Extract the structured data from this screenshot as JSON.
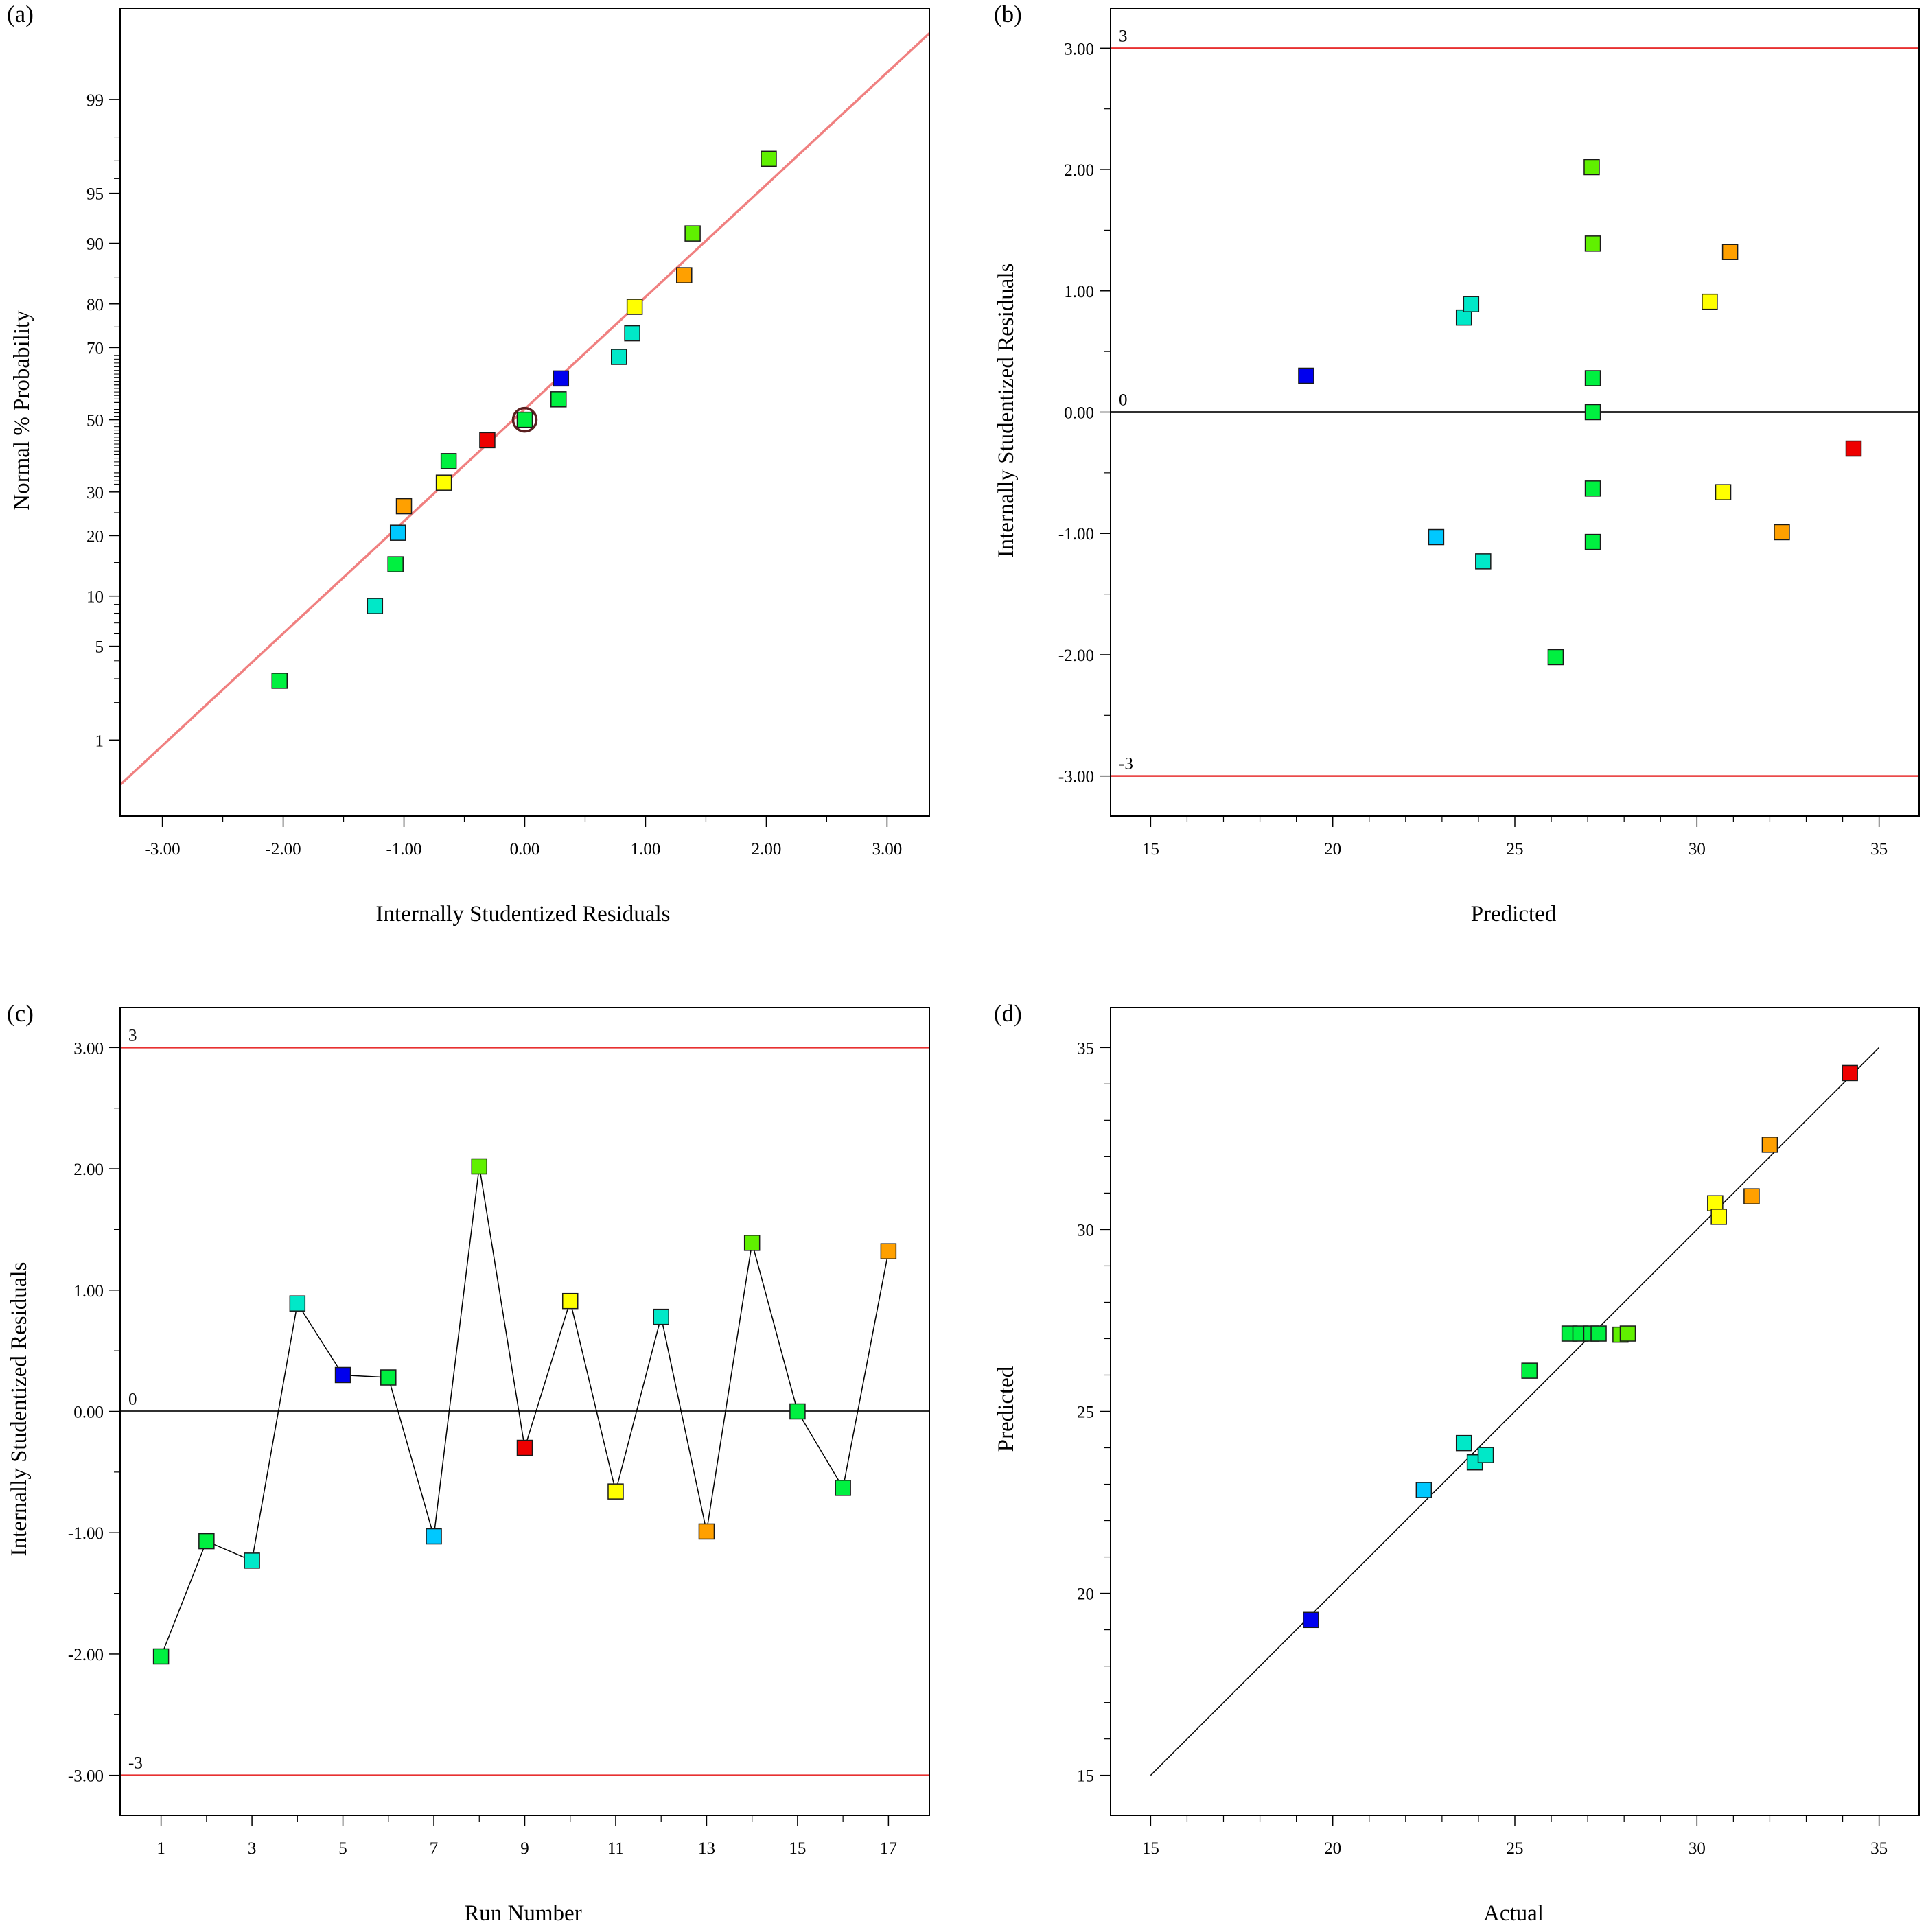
{
  "panels": [
    {
      "id": "a",
      "label": "(a)",
      "xlabel": "Internally Studentized Residuals",
      "ylabel": "Normal % Probability",
      "xticks": [
        "-3.00",
        "-2.00",
        "-1.00",
        "0.00",
        "1.00",
        "2.00",
        "3.00"
      ],
      "yticks": [
        "1",
        "5",
        "10",
        "20",
        "30",
        "50",
        "70",
        "80",
        "90",
        "95",
        "99"
      ]
    },
    {
      "id": "b",
      "label": "(b)",
      "xlabel": "Predicted",
      "ylabel": "Internally Studentized Residuals",
      "xticks": [
        "15",
        "20",
        "25",
        "30",
        "35"
      ],
      "yticks": [
        "-3.00",
        "-2.00",
        "-1.00",
        "0.00",
        "1.00",
        "2.00",
        "3.00"
      ],
      "ref_labels": [
        "3",
        "0",
        "-3"
      ]
    },
    {
      "id": "c",
      "label": "(c)",
      "xlabel": "Run Number",
      "ylabel": "Internally Studentized Residuals",
      "xticks": [
        "1",
        "3",
        "5",
        "7",
        "9",
        "11",
        "13",
        "15",
        "17"
      ],
      "yticks": [
        "-3.00",
        "-2.00",
        "-1.00",
        "0.00",
        "1.00",
        "2.00",
        "3.00"
      ],
      "ref_labels": [
        "3",
        "0",
        "-3"
      ]
    },
    {
      "id": "d",
      "label": "(d)",
      "xlabel": "Actual",
      "ylabel": "Predicted",
      "xticks": [
        "15",
        "20",
        "25",
        "30",
        "35"
      ],
      "yticks": [
        "15",
        "20",
        "25",
        "30",
        "35"
      ]
    }
  ],
  "colors": {
    "blue": "#0000ee",
    "sky": "#00c8ff",
    "cyan": "#00e8c8",
    "green": "#00f040",
    "lime": "#60f000",
    "yellow": "#ffff00",
    "orange": "#ffa000",
    "red": "#ee0000",
    "fit_line": "#f08080",
    "limit_line": "#e83030",
    "zero_line": "#303030"
  },
  "chart_data": [
    {
      "panel": "a",
      "type": "scatter",
      "title": "",
      "xlabel": "Internally Studentized Residuals",
      "ylabel": "Normal % Probability",
      "xlim": [
        -3.35,
        3.35
      ],
      "y_scale": "normal probability",
      "ylim_percent": [
        0.2,
        99.86
      ],
      "reference_line": {
        "x": [
          -3.35,
          3.35
        ],
        "y_percent": [
          0.4,
          99.75
        ]
      },
      "circled_point": {
        "x": 0.0,
        "y": 50.0
      },
      "points": [
        {
          "x": -2.03,
          "y": 2.9,
          "color": "green"
        },
        {
          "x": -1.24,
          "y": 8.8,
          "color": "cyan"
        },
        {
          "x": -1.07,
          "y": 14.7,
          "color": "green"
        },
        {
          "x": -1.05,
          "y": 20.6,
          "color": "sky"
        },
        {
          "x": -1.0,
          "y": 26.5,
          "color": "orange"
        },
        {
          "x": -0.67,
          "y": 32.4,
          "color": "yellow"
        },
        {
          "x": -0.63,
          "y": 38.2,
          "color": "green"
        },
        {
          "x": -0.31,
          "y": 44.1,
          "color": "red"
        },
        {
          "x": 0.0,
          "y": 50.0,
          "color": "green"
        },
        {
          "x": 0.28,
          "y": 55.9,
          "color": "green"
        },
        {
          "x": 0.3,
          "y": 61.8,
          "color": "blue"
        },
        {
          "x": 0.78,
          "y": 67.6,
          "color": "cyan"
        },
        {
          "x": 0.89,
          "y": 73.5,
          "color": "cyan"
        },
        {
          "x": 0.91,
          "y": 79.4,
          "color": "yellow"
        },
        {
          "x": 1.32,
          "y": 85.3,
          "color": "orange"
        },
        {
          "x": 1.39,
          "y": 91.2,
          "color": "lime"
        },
        {
          "x": 2.02,
          "y": 97.1,
          "color": "lime"
        }
      ]
    },
    {
      "panel": "b",
      "type": "scatter",
      "title": "",
      "xlabel": "Predicted",
      "ylabel": "Internally Studentized Residuals",
      "xlim": [
        13.9,
        36.1
      ],
      "ylim": [
        -3.33,
        3.33
      ],
      "reference_lines": [
        3,
        0,
        -3
      ],
      "points": [
        {
          "x": 19.27,
          "y": 0.3,
          "color": "blue"
        },
        {
          "x": 22.84,
          "y": -1.03,
          "color": "sky"
        },
        {
          "x": 23.6,
          "y": 0.78,
          "color": "cyan"
        },
        {
          "x": 23.8,
          "y": 0.89,
          "color": "cyan"
        },
        {
          "x": 24.13,
          "y": -1.23,
          "color": "cyan"
        },
        {
          "x": 26.12,
          "y": -2.02,
          "color": "green"
        },
        {
          "x": 27.11,
          "y": 2.02,
          "color": "lime"
        },
        {
          "x": 27.14,
          "y": 1.39,
          "color": "lime"
        },
        {
          "x": 27.14,
          "y": 0.28,
          "color": "green"
        },
        {
          "x": 27.14,
          "y": 0.0,
          "color": "green"
        },
        {
          "x": 27.14,
          "y": -0.63,
          "color": "green"
        },
        {
          "x": 27.14,
          "y": -1.07,
          "color": "green"
        },
        {
          "x": 30.35,
          "y": 0.91,
          "color": "yellow"
        },
        {
          "x": 30.72,
          "y": -0.66,
          "color": "yellow"
        },
        {
          "x": 30.91,
          "y": 1.32,
          "color": "orange"
        },
        {
          "x": 32.33,
          "y": -0.99,
          "color": "orange"
        },
        {
          "x": 34.3,
          "y": -0.3,
          "color": "red"
        }
      ]
    },
    {
      "panel": "c",
      "type": "line",
      "title": "",
      "xlabel": "Run Number",
      "ylabel": "Internally Studentized Residuals",
      "xlim": [
        0.1,
        17.9
      ],
      "ylim": [
        -3.33,
        3.33
      ],
      "reference_lines": [
        3,
        0,
        -3
      ],
      "points": [
        {
          "x": 1,
          "y": -2.02,
          "color": "green"
        },
        {
          "x": 2,
          "y": -1.07,
          "color": "green"
        },
        {
          "x": 3,
          "y": -1.23,
          "color": "cyan"
        },
        {
          "x": 4,
          "y": 0.89,
          "color": "cyan"
        },
        {
          "x": 5,
          "y": 0.3,
          "color": "blue"
        },
        {
          "x": 6,
          "y": 0.28,
          "color": "green"
        },
        {
          "x": 7,
          "y": -1.03,
          "color": "sky"
        },
        {
          "x": 8,
          "y": 2.02,
          "color": "lime"
        },
        {
          "x": 9,
          "y": -0.3,
          "color": "red"
        },
        {
          "x": 10,
          "y": 0.91,
          "color": "yellow"
        },
        {
          "x": 11,
          "y": -0.66,
          "color": "yellow"
        },
        {
          "x": 12,
          "y": 0.78,
          "color": "cyan"
        },
        {
          "x": 13,
          "y": -0.99,
          "color": "orange"
        },
        {
          "x": 14,
          "y": 1.39,
          "color": "lime"
        },
        {
          "x": 15,
          "y": 0.0,
          "color": "green"
        },
        {
          "x": 16,
          "y": -0.63,
          "color": "green"
        },
        {
          "x": 17,
          "y": 1.32,
          "color": "orange"
        }
      ]
    },
    {
      "panel": "d",
      "type": "scatter",
      "title": "",
      "xlabel": "Actual",
      "ylabel": "Predicted",
      "xlim": [
        13.9,
        36.1
      ],
      "ylim": [
        13.9,
        36.1
      ],
      "reference_line": {
        "x": [
          15,
          35
        ],
        "y": [
          15,
          35
        ]
      },
      "points": [
        {
          "x": 19.4,
          "y": 19.27,
          "color": "blue"
        },
        {
          "x": 22.5,
          "y": 22.84,
          "color": "sky"
        },
        {
          "x": 23.6,
          "y": 24.13,
          "color": "cyan"
        },
        {
          "x": 23.9,
          "y": 23.6,
          "color": "cyan"
        },
        {
          "x": 24.2,
          "y": 23.8,
          "color": "cyan"
        },
        {
          "x": 25.4,
          "y": 26.12,
          "color": "green"
        },
        {
          "x": 26.5,
          "y": 27.14,
          "color": "green"
        },
        {
          "x": 26.8,
          "y": 27.14,
          "color": "green"
        },
        {
          "x": 27.1,
          "y": 27.14,
          "color": "green"
        },
        {
          "x": 27.3,
          "y": 27.14,
          "color": "green"
        },
        {
          "x": 27.9,
          "y": 27.11,
          "color": "lime"
        },
        {
          "x": 28.1,
          "y": 27.14,
          "color": "lime"
        },
        {
          "x": 30.5,
          "y": 30.72,
          "color": "yellow"
        },
        {
          "x": 30.6,
          "y": 30.35,
          "color": "yellow"
        },
        {
          "x": 31.5,
          "y": 30.91,
          "color": "orange"
        },
        {
          "x": 32.0,
          "y": 32.33,
          "color": "orange"
        },
        {
          "x": 34.2,
          "y": 34.3,
          "color": "red"
        }
      ]
    }
  ]
}
